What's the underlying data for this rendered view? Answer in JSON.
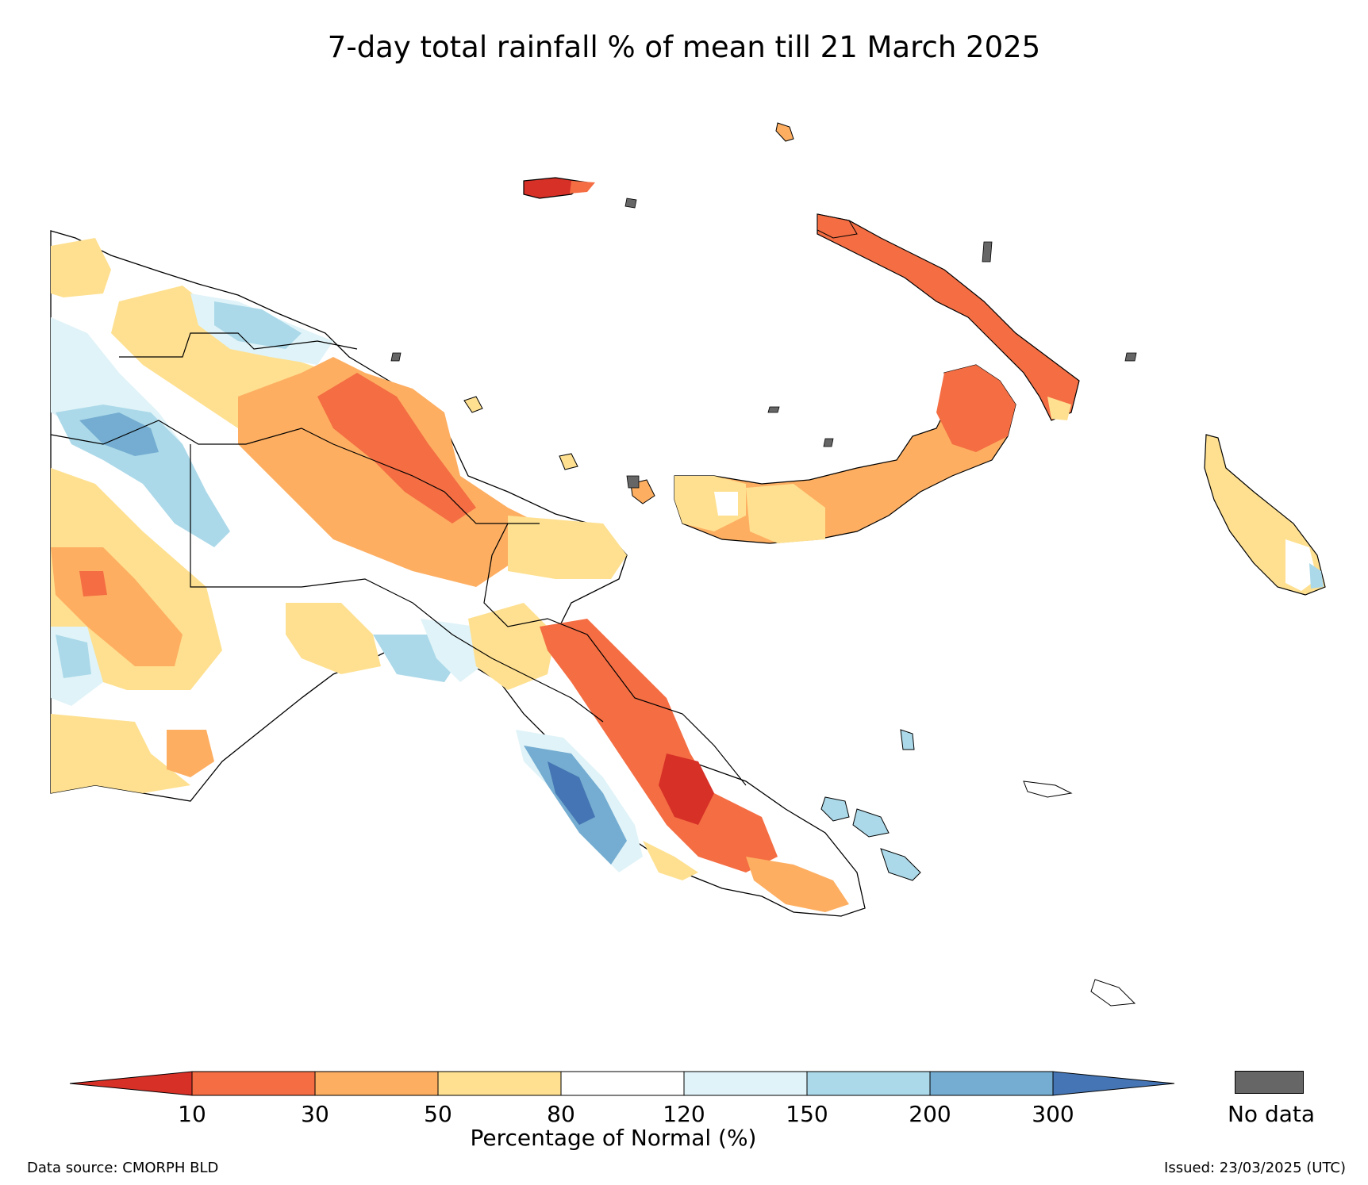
{
  "title": "7-day total rainfall % of mean till 21 March 2025",
  "colorbar": {
    "label": "Percentage of Normal (%)",
    "ticks": [
      "10",
      "30",
      "50",
      "80",
      "120",
      "150",
      "200",
      "300"
    ],
    "bins": [
      {
        "range": "<10",
        "color": "#d73027"
      },
      {
        "range": "10-30",
        "color": "#f46d43"
      },
      {
        "range": "30-50",
        "color": "#fdae61"
      },
      {
        "range": "50-80",
        "color": "#fee090"
      },
      {
        "range": "80-120",
        "color": "#ffffff"
      },
      {
        "range": "120-150",
        "color": "#e0f3f8"
      },
      {
        "range": "150-200",
        "color": "#abd9e9"
      },
      {
        "range": "200-300",
        "color": "#74add1"
      },
      {
        "range": ">300",
        "color": "#4575b4"
      }
    ],
    "no_data_label": "No data",
    "no_data_color": "#666666"
  },
  "footer": {
    "source": "Data source: CMORPH BLD",
    "issued": "Issued: 23/03/2025 (UTC)"
  }
}
